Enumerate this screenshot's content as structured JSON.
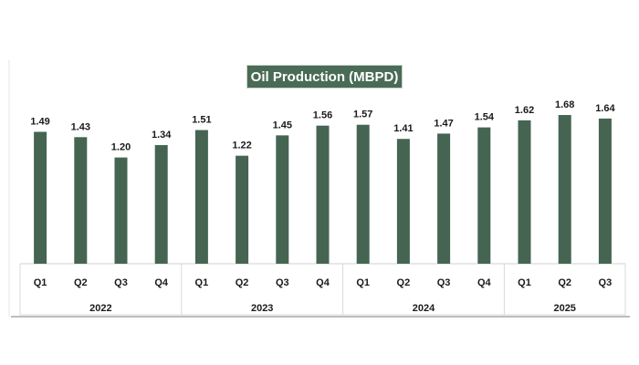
{
  "chart_data": {
    "type": "bar",
    "title": "Oil Production (MBPD)",
    "categories": [
      "Q1",
      "Q2",
      "Q3",
      "Q4",
      "Q1",
      "Q2",
      "Q3",
      "Q4",
      "Q1",
      "Q2",
      "Q3",
      "Q4",
      "Q1",
      "Q2",
      "Q3"
    ],
    "groups": [
      {
        "label": "2022",
        "count": 4
      },
      {
        "label": "2023",
        "count": 4
      },
      {
        "label": "2024",
        "count": 4
      },
      {
        "label": "2025",
        "count": 3
      }
    ],
    "values": [
      1.49,
      1.43,
      1.2,
      1.34,
      1.51,
      1.22,
      1.45,
      1.56,
      1.57,
      1.41,
      1.47,
      1.54,
      1.62,
      1.68,
      1.64
    ],
    "ylim": [
      0,
      1.8
    ],
    "grid": false,
    "data_labels": true,
    "bar_color": "#456552",
    "title_bg": "#4a6b55"
  }
}
